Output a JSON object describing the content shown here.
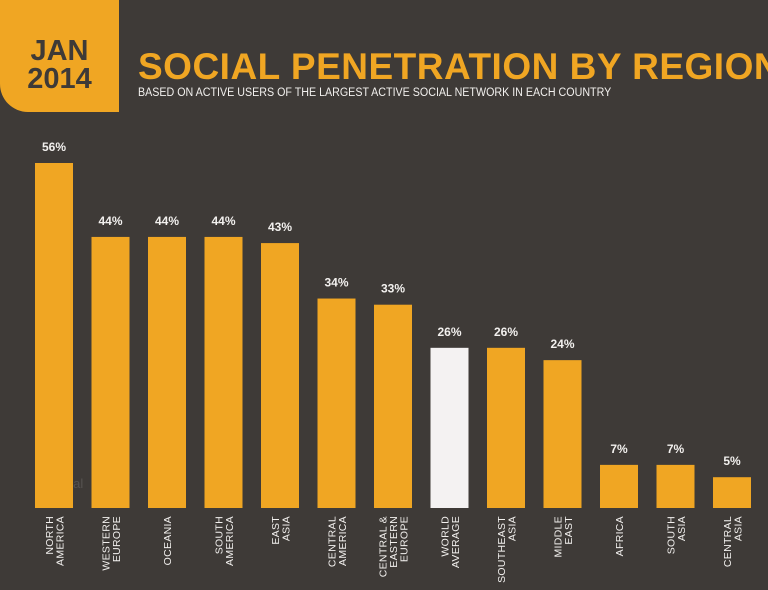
{
  "badge": {
    "month": "JAN",
    "year": "2014"
  },
  "chart_data": {
    "type": "bar",
    "title": "SOCIAL PENETRATION BY REGION",
    "subtitle": "BASED ON ACTIVE USERS OF THE LARGEST ACTIVE SOCIAL NETWORK IN EACH COUNTRY",
    "categories": [
      [
        "NORTH",
        "AMERICA"
      ],
      [
        "WESTERN",
        "EUROPE"
      ],
      [
        "OCEANIA"
      ],
      [
        "SOUTH",
        "AMERICA"
      ],
      [
        "EAST",
        "ASIA"
      ],
      [
        "CENTRAL",
        "AMERICA"
      ],
      [
        "CENTRAL &",
        "EASTERN",
        "EUROPE"
      ],
      [
        "WORLD",
        "AVERAGE"
      ],
      [
        "SOUTHEAST",
        "ASIA"
      ],
      [
        "MIDDLE",
        "EAST"
      ],
      [
        "AFRICA"
      ],
      [
        "SOUTH",
        "ASIA"
      ],
      [
        "CENTRAL",
        "ASIA"
      ]
    ],
    "values": [
      56,
      44,
      44,
      44,
      43,
      34,
      33,
      26,
      26,
      24,
      7,
      7,
      5
    ],
    "labels": [
      "56%",
      "44%",
      "44%",
      "44%",
      "43%",
      "34%",
      "33%",
      "26%",
      "26%",
      "24%",
      "7%",
      "7%",
      "5%"
    ],
    "highlight_index": 7,
    "ylim": [
      0,
      56
    ],
    "grid": false,
    "colors": {
      "bar": "#f0a623",
      "highlight": "#f4f2f2",
      "background": "#3e3a37",
      "text": "#f2f0ee"
    }
  },
  "watermark": [
    "we",
    "are",
    "social"
  ]
}
